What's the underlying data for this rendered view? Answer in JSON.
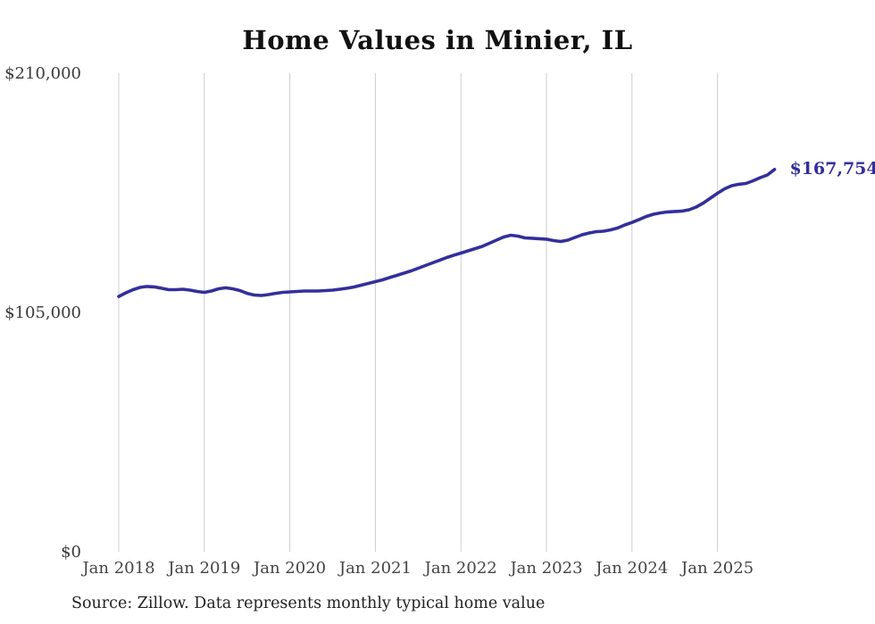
{
  "chart_data": {
    "type": "line",
    "title": "Home Values in Minier, IL",
    "source_note": "Source: Zillow. Data represents monthly typical home value",
    "end_label": "$167,754",
    "x_tick_labels": [
      "Jan 2018",
      "Jan 2019",
      "Jan 2020",
      "Jan 2021",
      "Jan 2022",
      "Jan 2023",
      "Jan 2024",
      "Jan 2025"
    ],
    "y_tick_labels": [
      "$0",
      "$105,000",
      "$210,000"
    ],
    "y_tick_values": [
      0,
      105000,
      210000
    ],
    "ylim": [
      0,
      210000
    ],
    "grid": "vertical-only",
    "legend": "none",
    "line_color": "#332f9b",
    "gridline_color": "#cccccc",
    "tick_label_color": "#444444",
    "series": [
      {
        "name": "Typical home value",
        "frequency": "monthly",
        "start_month": "2018-01",
        "end_month": "2025-09",
        "final_value": 167754,
        "values": [
          112000,
          113600,
          115000,
          116000,
          116400,
          116200,
          115600,
          115000,
          115000,
          115200,
          114800,
          114200,
          113800,
          114400,
          115400,
          115800,
          115400,
          114600,
          113400,
          112650,
          112450,
          112850,
          113400,
          113800,
          114000,
          114200,
          114400,
          114400,
          114400,
          114600,
          114800,
          115200,
          115600,
          116150,
          116950,
          117750,
          118500,
          119300,
          120300,
          121250,
          122250,
          123200,
          124400,
          125550,
          126750,
          127900,
          129100,
          130100,
          131050,
          132050,
          133000,
          134000,
          135350,
          136750,
          138100,
          138900,
          138500,
          137700,
          137550,
          137350,
          137150,
          136550,
          136150,
          136750,
          137900,
          139100,
          139850,
          140450,
          140650,
          141250,
          142050,
          143400,
          144500,
          145800,
          147100,
          148100,
          148700,
          149100,
          149300,
          149450,
          150050,
          151250,
          153000,
          155150,
          157300,
          159250,
          160650,
          161250,
          161600,
          162800,
          164150,
          165350,
          167754
        ]
      }
    ]
  }
}
